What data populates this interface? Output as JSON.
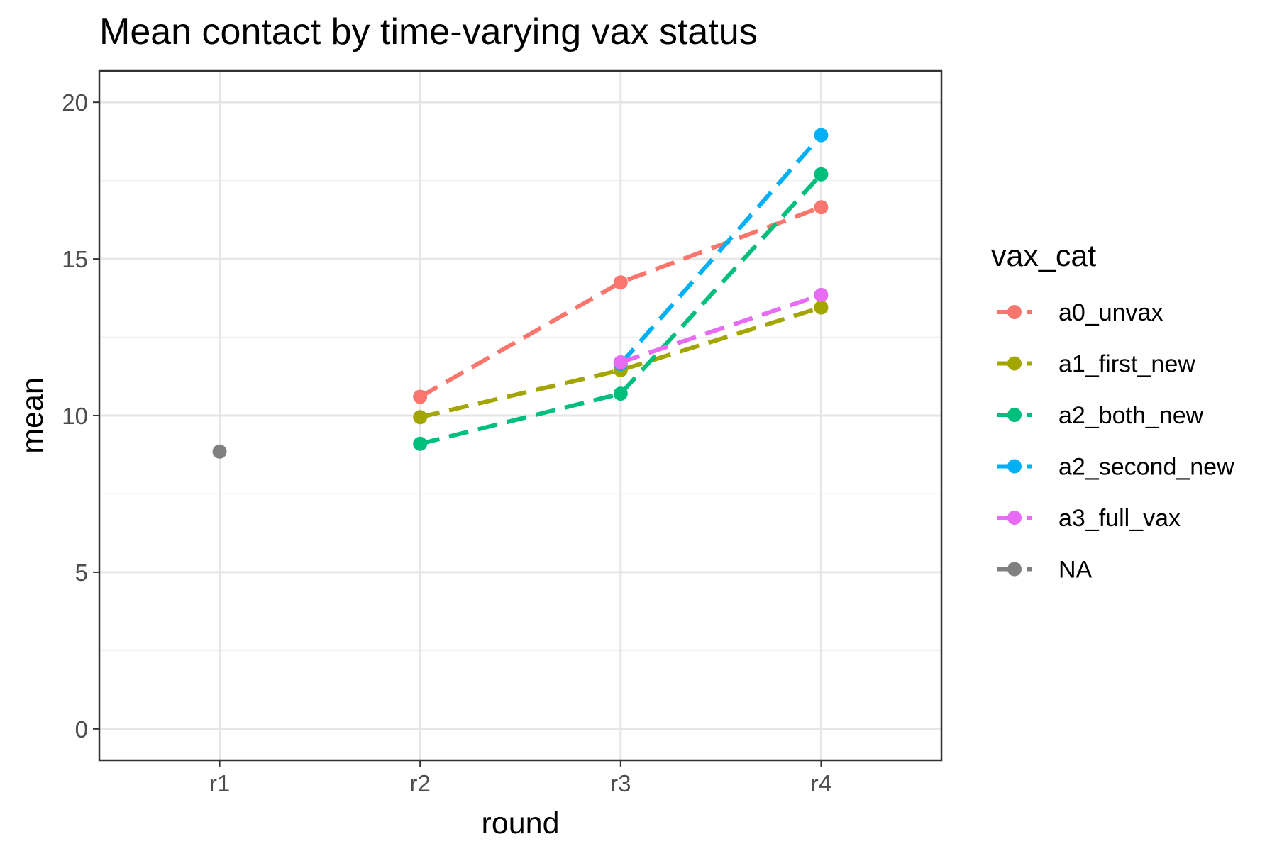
{
  "chart_data": {
    "type": "line",
    "title": "Mean contact by time-varying vax status",
    "xlabel": "round",
    "ylabel": "mean",
    "categories": [
      "r1",
      "r2",
      "r3",
      "r4"
    ],
    "ylim": [
      -1,
      21
    ],
    "yticks": [
      0,
      5,
      10,
      15,
      20
    ],
    "grid": true,
    "line_style": "dashed",
    "legend": {
      "title": "vax_cat",
      "position": "right"
    },
    "series": [
      {
        "name": "a0_unvax",
        "color": "#F8766D",
        "values": [
          null,
          10.6,
          14.25,
          16.65
        ]
      },
      {
        "name": "a1_first_new",
        "color": "#A3A500",
        "values": [
          null,
          9.95,
          11.45,
          13.45
        ]
      },
      {
        "name": "a2_both_new",
        "color": "#00BF7D",
        "values": [
          null,
          9.1,
          10.7,
          17.7
        ]
      },
      {
        "name": "a2_second_new",
        "color": "#00B0F6",
        "values": [
          null,
          null,
          11.65,
          18.95
        ]
      },
      {
        "name": "a3_full_vax",
        "color": "#E76BF3",
        "values": [
          null,
          null,
          11.7,
          13.85
        ]
      },
      {
        "name": "NA",
        "color": "#808080",
        "values": [
          8.85,
          null,
          null,
          null
        ]
      }
    ]
  }
}
